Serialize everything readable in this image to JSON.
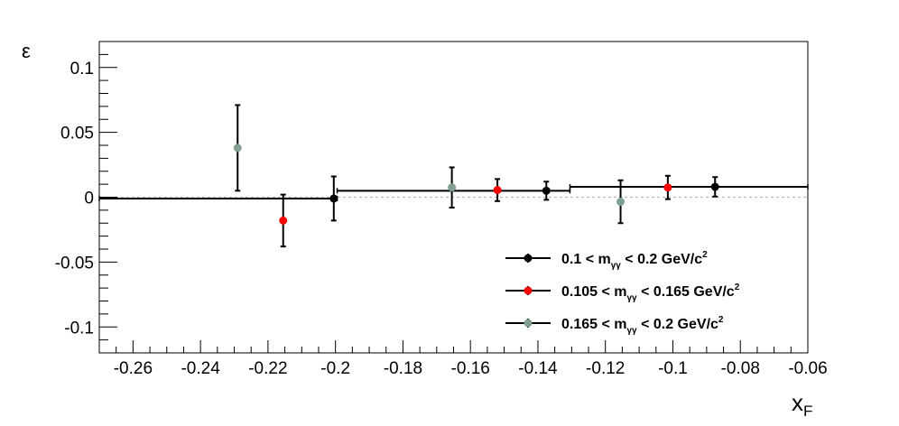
{
  "chart_data": {
    "type": "scatter",
    "xlabel": "x",
    "xlabel_sub": "F",
    "ylabel": "ε",
    "xlim": [
      -0.27,
      -0.06
    ],
    "ylim": [
      -0.12,
      0.12
    ],
    "x_ticks": [
      -0.26,
      -0.24,
      -0.22,
      -0.2,
      -0.18,
      -0.16,
      -0.14,
      -0.12,
      -0.1,
      -0.08,
      -0.06
    ],
    "x_tick_labels": [
      "-0.26",
      "-0.24",
      "-0.22",
      "-0.2",
      "-0.18",
      "-0.16",
      "-0.14",
      "-0.12",
      "-0.1",
      "-0.08",
      "-0.06"
    ],
    "y_ticks": [
      -0.1,
      -0.05,
      0,
      0.05,
      0.1
    ],
    "y_tick_labels": [
      "-0.1",
      "-0.05",
      "0",
      "0.05",
      "0.1"
    ],
    "reference_line": {
      "y": 0,
      "color": "#bbbbbb",
      "style": "dashed"
    },
    "series": [
      {
        "legend_parts": {
          "pre": "0.1 < m",
          "sub": "γγ",
          "post": " < 0.2 GeV/c",
          "sup": "2"
        },
        "color": "#000000",
        "points": [
          {
            "x": -0.2005,
            "y": -0.001,
            "err": 0.017,
            "xlo": -0.27,
            "xhi": -0.1995
          },
          {
            "x": -0.1375,
            "y": 0.005,
            "err": 0.007,
            "xlo": -0.1995,
            "xhi": -0.1305
          },
          {
            "x": -0.0875,
            "y": 0.008,
            "err": 0.0075,
            "xlo": -0.1305,
            "xhi": -0.06
          }
        ]
      },
      {
        "legend_parts": {
          "pre": "0.105 < m",
          "sub": "γγ",
          "post": " < 0.165 GeV/c",
          "sup": "2"
        },
        "color": "#ff0000",
        "points": [
          {
            "x": -0.2155,
            "y": -0.018,
            "err": 0.02
          },
          {
            "x": -0.152,
            "y": 0.0055,
            "err": 0.0085
          },
          {
            "x": -0.1015,
            "y": 0.0075,
            "err": 0.009
          }
        ]
      },
      {
        "legend_parts": {
          "pre": "0.165 < m",
          "sub": "γγ",
          "post": " < 0.2 GeV/c",
          "sup": "2"
        },
        "color": "#7f9f8f",
        "points": [
          {
            "x": -0.229,
            "y": 0.038,
            "err": 0.033
          },
          {
            "x": -0.1655,
            "y": 0.0075,
            "err": 0.0155
          },
          {
            "x": -0.1155,
            "y": -0.0035,
            "err": 0.0165
          }
        ]
      }
    ],
    "legend_position": "bottom-right"
  }
}
